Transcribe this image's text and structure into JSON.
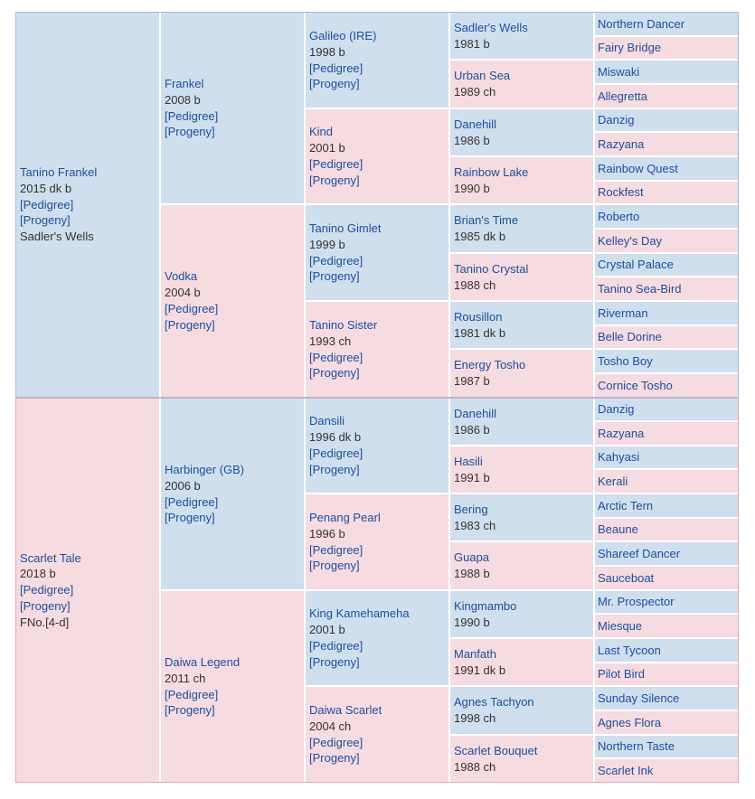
{
  "colors": {
    "sire_bg": "#cfdfee",
    "dam_bg": "#f6dbe1",
    "sire_border": "#9fbedc",
    "dam_border": "#e0a7b4",
    "link": "#1b4f9c",
    "text": "#333333"
  },
  "pedigree": {
    "g1": [
      {
        "name": "Tanino Frankel",
        "info": "2015 dk b",
        "pedigree": "[Pedigree]",
        "progeny": "[Progeny]",
        "extra": "Sadler's Wells"
      },
      {
        "name": "Scarlet Tale",
        "info": "2018 b",
        "pedigree": "[Pedigree]",
        "progeny": "[Progeny]",
        "extra": "FNo.[4-d]"
      }
    ],
    "g2": [
      {
        "name": "Frankel",
        "info": "2008 b",
        "pedigree": "[Pedigree]",
        "progeny": "[Progeny]"
      },
      {
        "name": "Vodka",
        "info": "2004 b",
        "pedigree": "[Pedigree]",
        "progeny": "[Progeny]"
      },
      {
        "name": "Harbinger (GB)",
        "info": "2006 b",
        "pedigree": "[Pedigree]",
        "progeny": "[Progeny]"
      },
      {
        "name": "Daiwa Legend",
        "info": "2011 ch",
        "pedigree": "[Pedigree]",
        "progeny": "[Progeny]"
      }
    ],
    "g3": [
      {
        "name": "Galileo (IRE)",
        "info": "1998 b",
        "pedigree": "[Pedigree]",
        "progeny": "[Progeny]"
      },
      {
        "name": "Kind",
        "info": "2001 b",
        "pedigree": "[Pedigree]",
        "progeny": "[Progeny]"
      },
      {
        "name": "Tanino Gimlet",
        "info": "1999 b",
        "pedigree": "[Pedigree]",
        "progeny": "[Progeny]"
      },
      {
        "name": "Tanino Sister",
        "info": "1993 ch",
        "pedigree": "[Pedigree]",
        "progeny": "[Progeny]"
      },
      {
        "name": "Dansili",
        "info": "1996 dk b",
        "pedigree": "[Pedigree]",
        "progeny": "[Progeny]"
      },
      {
        "name": "Penang Pearl",
        "info": "1996 b",
        "pedigree": "[Pedigree]",
        "progeny": "[Progeny]"
      },
      {
        "name": "King Kamehameha",
        "info": "2001 b",
        "pedigree": "[Pedigree]",
        "progeny": "[Progeny]"
      },
      {
        "name": "Daiwa Scarlet",
        "info": "2004 ch",
        "pedigree": "[Pedigree]",
        "progeny": "[Progeny]"
      }
    ],
    "g4": [
      {
        "name": "Sadler's Wells",
        "info": "1981 b"
      },
      {
        "name": "Urban Sea",
        "info": "1989 ch"
      },
      {
        "name": "Danehill",
        "info": "1986 b"
      },
      {
        "name": "Rainbow Lake",
        "info": "1990 b"
      },
      {
        "name": "Brian's Time",
        "info": "1985 dk b"
      },
      {
        "name": "Tanino Crystal",
        "info": "1988 ch"
      },
      {
        "name": "Rousillon",
        "info": "1981 dk b"
      },
      {
        "name": "Energy Tosho",
        "info": "1987 b"
      },
      {
        "name": "Danehill",
        "info": "1986 b"
      },
      {
        "name": "Hasili",
        "info": "1991 b"
      },
      {
        "name": "Bering",
        "info": "1983 ch"
      },
      {
        "name": "Guapa",
        "info": "1988 b"
      },
      {
        "name": "Kingmambo",
        "info": "1990 b"
      },
      {
        "name": "Manfath",
        "info": "1991 dk b"
      },
      {
        "name": "Agnes Tachyon",
        "info": "1998 ch"
      },
      {
        "name": "Scarlet Bouquet",
        "info": "1988 ch"
      }
    ],
    "g5": [
      {
        "name": "Northern Dancer"
      },
      {
        "name": "Fairy Bridge"
      },
      {
        "name": "Miswaki"
      },
      {
        "name": "Allegretta"
      },
      {
        "name": "Danzig"
      },
      {
        "name": "Razyana"
      },
      {
        "name": "Rainbow Quest"
      },
      {
        "name": "Rockfest"
      },
      {
        "name": "Roberto"
      },
      {
        "name": "Kelley's Day"
      },
      {
        "name": "Crystal Palace"
      },
      {
        "name": "Tanino Sea-Bird"
      },
      {
        "name": "Riverman"
      },
      {
        "name": "Belle Dorine"
      },
      {
        "name": "Tosho Boy"
      },
      {
        "name": "Cornice Tosho"
      },
      {
        "name": "Danzig"
      },
      {
        "name": "Razyana"
      },
      {
        "name": "Kahyasi"
      },
      {
        "name": "Kerali"
      },
      {
        "name": "Arctic Tern"
      },
      {
        "name": "Beaune"
      },
      {
        "name": "Shareef Dancer"
      },
      {
        "name": "Sauceboat"
      },
      {
        "name": "Mr. Prospector"
      },
      {
        "name": "Miesque"
      },
      {
        "name": "Last Tycoon"
      },
      {
        "name": "Pilot Bird"
      },
      {
        "name": "Sunday Silence"
      },
      {
        "name": "Agnes Flora"
      },
      {
        "name": "Northern Taste"
      },
      {
        "name": "Scarlet Ink"
      }
    ]
  }
}
